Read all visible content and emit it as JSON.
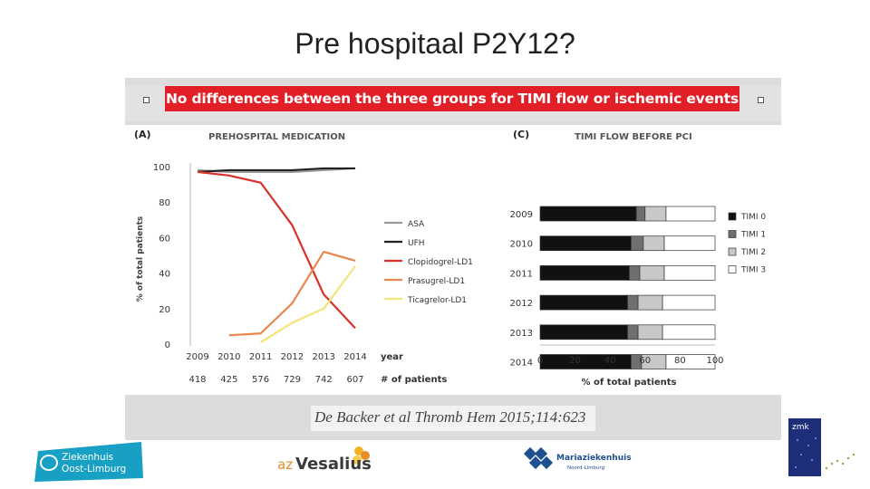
{
  "slide": {
    "title": "Pre hospitaal P2Y12?"
  },
  "banner": {
    "text": "No differences between the three groups for TIMI flow or ischemic events",
    "color": "#e21e26"
  },
  "citation": "De Backer et al Thromb Hem 2015;114:623",
  "chart_data": [
    {
      "type": "line",
      "panel_label": "(A)",
      "title": "PREHOSPITAL MEDICATION",
      "xlabel": "year",
      "ylabel": "% of total patients",
      "x": [
        2009,
        2010,
        2011,
        2012,
        2013,
        2014
      ],
      "patients_label": "# of patients",
      "patients": [
        418,
        425,
        576,
        729,
        742,
        607
      ],
      "ylim": [
        0,
        100
      ],
      "yticks": [
        0,
        20,
        40,
        60,
        80,
        100
      ],
      "series": [
        {
          "name": "ASA",
          "color": "#9a9a9a",
          "values": [
            98,
            97,
            97,
            97,
            98,
            99
          ]
        },
        {
          "name": "UFH",
          "color": "#222222",
          "values": [
            97,
            98,
            98,
            98,
            99,
            99
          ]
        },
        {
          "name": "Clopidogrel-LD1",
          "color": "#d8312a",
          "values": [
            97,
            95,
            91,
            67,
            28,
            9
          ]
        },
        {
          "name": "Prasugrel-LD1",
          "color": "#e8874f",
          "values": [
            null,
            5,
            6,
            23,
            52,
            47
          ]
        },
        {
          "name": "Ticagrelor-LD1",
          "color": "#f3e57a",
          "values": [
            null,
            null,
            1,
            12,
            20,
            44
          ]
        }
      ]
    },
    {
      "type": "bar",
      "orientation": "horizontal",
      "stacked": true,
      "panel_label": "(C)",
      "title": "TIMI FLOW BEFORE PCI",
      "xlabel": "% of total patients",
      "xlim": [
        0,
        100
      ],
      "xticks": [
        0,
        20,
        40,
        60,
        80,
        100
      ],
      "categories": [
        "2009",
        "2010",
        "2011",
        "2012",
        "2013",
        "2014"
      ],
      "series": [
        {
          "name": "TIMI 0",
          "color": "#111111",
          "values": [
            55,
            52,
            51,
            50,
            50,
            52
          ]
        },
        {
          "name": "TIMI 1",
          "color": "#6f6f6f",
          "values": [
            5,
            7,
            6,
            6,
            6,
            6
          ]
        },
        {
          "name": "TIMI 2",
          "color": "#c8c8c8",
          "values": [
            12,
            12,
            14,
            14,
            14,
            14
          ]
        },
        {
          "name": "TIMI 3",
          "color": "#ffffff",
          "values": [
            28,
            29,
            29,
            30,
            30,
            28
          ]
        }
      ]
    }
  ],
  "logos": {
    "zol": {
      "line1": "Ziekenhuis",
      "line2": "Oost-Limburg"
    },
    "vesalius": {
      "prefix": "az",
      "name": "Vesalius"
    },
    "mariaziekenhuis": {
      "name": "Mariaziekenhuis",
      "sub": "Noord-Limburg"
    },
    "zmk": {
      "name": "zmk"
    }
  }
}
